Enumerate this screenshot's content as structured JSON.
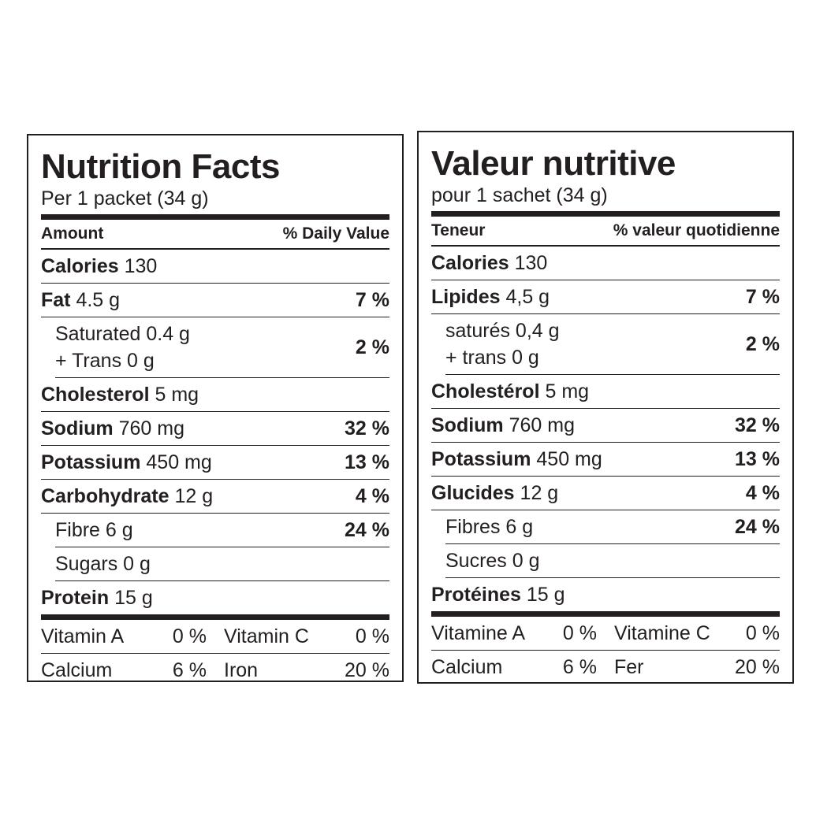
{
  "en": {
    "title": "Nutrition Facts",
    "serving": "Per 1 packet (34 g)",
    "header": {
      "amount": "Amount",
      "dv": "% Daily Value"
    },
    "calories": {
      "label": "Calories",
      "value": "130"
    },
    "fat": {
      "label": "Fat",
      "value": "4.5 g",
      "dv": "7 %"
    },
    "saturated": {
      "label": "Saturated 0.4 g",
      "trans": "+ Trans 0 g",
      "dv": "2 %"
    },
    "cholesterol": {
      "label": "Cholesterol",
      "value": "5 mg"
    },
    "sodium": {
      "label": "Sodium",
      "value": "760 mg",
      "dv": "32 %"
    },
    "potassium": {
      "label": "Potassium",
      "value": "450 mg",
      "dv": "13 %"
    },
    "carbohydrate": {
      "label": "Carbohydrate",
      "value": "12 g",
      "dv": "4 %"
    },
    "fibre": {
      "label": "Fibre 6 g",
      "dv": "24 %"
    },
    "sugars": {
      "label": "Sugars 0 g"
    },
    "protein": {
      "label": "Protein",
      "value": "15 g"
    },
    "vitamins": [
      [
        {
          "name": "Vitamin A",
          "value": "0 %"
        },
        {
          "name": "Vitamin C",
          "value": "0 %"
        }
      ],
      [
        {
          "name": "Calcium",
          "value": "6 %"
        },
        {
          "name": "Iron",
          "value": "20 %"
        }
      ]
    ]
  },
  "fr": {
    "title": "Valeur nutritive",
    "serving": "pour 1 sachet (34 g)",
    "header": {
      "amount": "Teneur",
      "dv": "% valeur quotidienne"
    },
    "calories": {
      "label": "Calories",
      "value": "130"
    },
    "fat": {
      "label": "Lipides",
      "value": "4,5 g",
      "dv": "7 %"
    },
    "saturated": {
      "label": "saturés 0,4 g",
      "trans": "+ trans 0 g",
      "dv": "2 %"
    },
    "cholesterol": {
      "label": "Cholestérol",
      "value": "5 mg"
    },
    "sodium": {
      "label": "Sodium",
      "value": "760 mg",
      "dv": "32 %"
    },
    "potassium": {
      "label": "Potassium",
      "value": "450 mg",
      "dv": "13 %"
    },
    "carbohydrate": {
      "label": "Glucides",
      "value": "12 g",
      "dv": "4 %"
    },
    "fibre": {
      "label": "Fibres 6 g",
      "dv": "24 %"
    },
    "sugars": {
      "label": "Sucres 0 g"
    },
    "protein": {
      "label": "Protéines",
      "value": "15 g"
    },
    "vitamins": [
      [
        {
          "name": "Vitamine A",
          "value": "0 %"
        },
        {
          "name": "Vitamine C",
          "value": "0 %"
        }
      ],
      [
        {
          "name": "Calcium",
          "value": "6 %"
        },
        {
          "name": "Fer",
          "value": "20 %"
        }
      ]
    ]
  }
}
